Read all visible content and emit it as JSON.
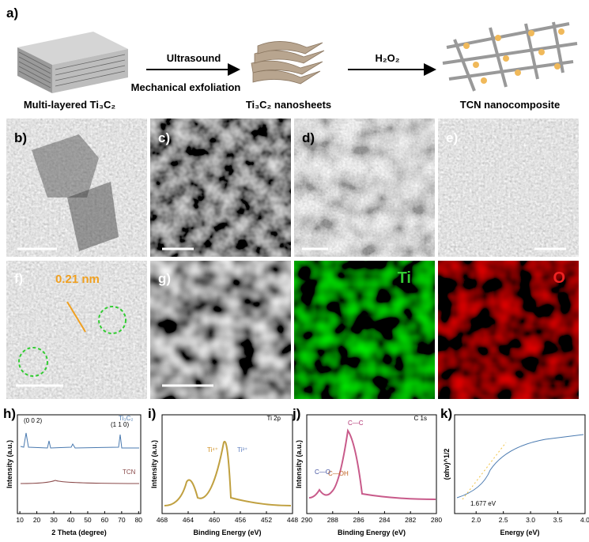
{
  "panel_a": {
    "label": "a)",
    "step1": "Ultrasound",
    "step1_sub": "Mechanical exfoliation",
    "step2": "H₂O₂",
    "material1": "Multi-layered Ti₃C₂",
    "material2": "Ti₃C₂ nanosheets",
    "material3": "TCN nanocomposite"
  },
  "images": {
    "b": "b)",
    "c": "c)",
    "d": "d)",
    "e": "e)",
    "f": "f)",
    "f_spacing": "0.21 nm",
    "g": "g)",
    "ti": "Ti",
    "o": "O"
  },
  "plots": [
    {
      "label": "h)",
      "y_label": "Intensity (a.u.)",
      "x_label": "2 Theta (degree)",
      "notes": [
        "Ti₃C₂",
        "TCN",
        "(0 0 2)",
        "(1 1 0)"
      ],
      "xticks": [
        "10",
        "20",
        "30",
        "40",
        "50",
        "60",
        "70",
        "80"
      ]
    },
    {
      "label": "i)",
      "y_label": "Intensity (a.u.)",
      "x_label": "Binding Energy (eV)",
      "notes": [
        "Ti 2p",
        "Ti⁴⁺",
        "Ti³⁺"
      ],
      "xticks": [
        "468",
        "464",
        "460",
        "456",
        "452",
        "448"
      ]
    },
    {
      "label": "j)",
      "y_label": "Intensity (a.u.)",
      "x_label": "Binding Energy (eV)",
      "notes": [
        "C 1s",
        "C—C",
        "C—OH",
        "C—O"
      ],
      "xticks": [
        "290",
        "288",
        "286",
        "284",
        "282",
        "280"
      ]
    },
    {
      "label": "k)",
      "y_label": "(αhν)^1/2",
      "x_label": "Energy (eV)",
      "notes": [
        "1.677 eV"
      ],
      "xticks": [
        "2.0",
        "2.5",
        "3.0",
        "3.5",
        "4.0"
      ]
    }
  ]
}
